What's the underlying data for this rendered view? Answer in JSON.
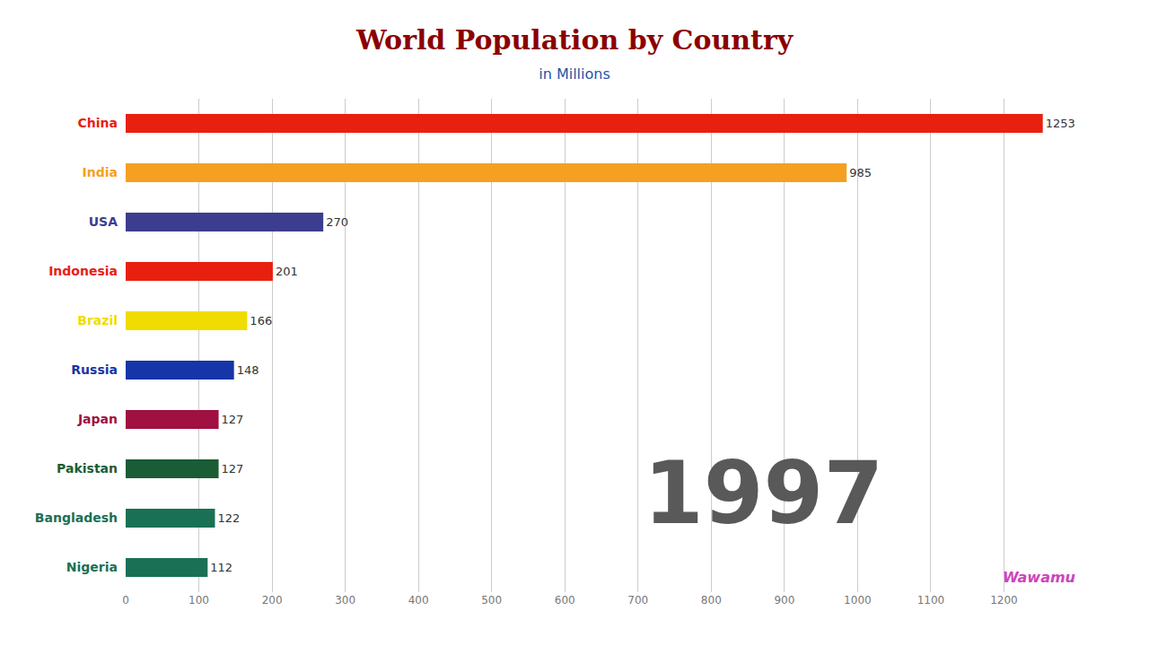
{
  "chart_data": {
    "type": "bar",
    "orientation": "horizontal",
    "title": "World Population by Country",
    "subtitle": "in Millions",
    "annotations": [
      "1997",
      "Wawamu"
    ],
    "categories": [
      "China",
      "India",
      "USA",
      "Indonesia",
      "Brazil",
      "Russia",
      "Japan",
      "Pakistan",
      "Bangladesh",
      "Nigeria"
    ],
    "values": [
      1253,
      985,
      270,
      201,
      166,
      148,
      127,
      127,
      122,
      112
    ],
    "colors": [
      "#E82010",
      "#F5A020",
      "#3D3D8F",
      "#E82010",
      "#F0DC00",
      "#1535A8",
      "#A01040",
      "#1A5C35",
      "#1A7055",
      "#1A7055"
    ],
    "xlim": [
      0,
      1300
    ],
    "xticks": [
      0,
      100,
      200,
      300,
      400,
      500,
      600,
      700,
      800,
      900,
      1000,
      1100,
      1200
    ],
    "grid": true,
    "data_labels": true
  }
}
